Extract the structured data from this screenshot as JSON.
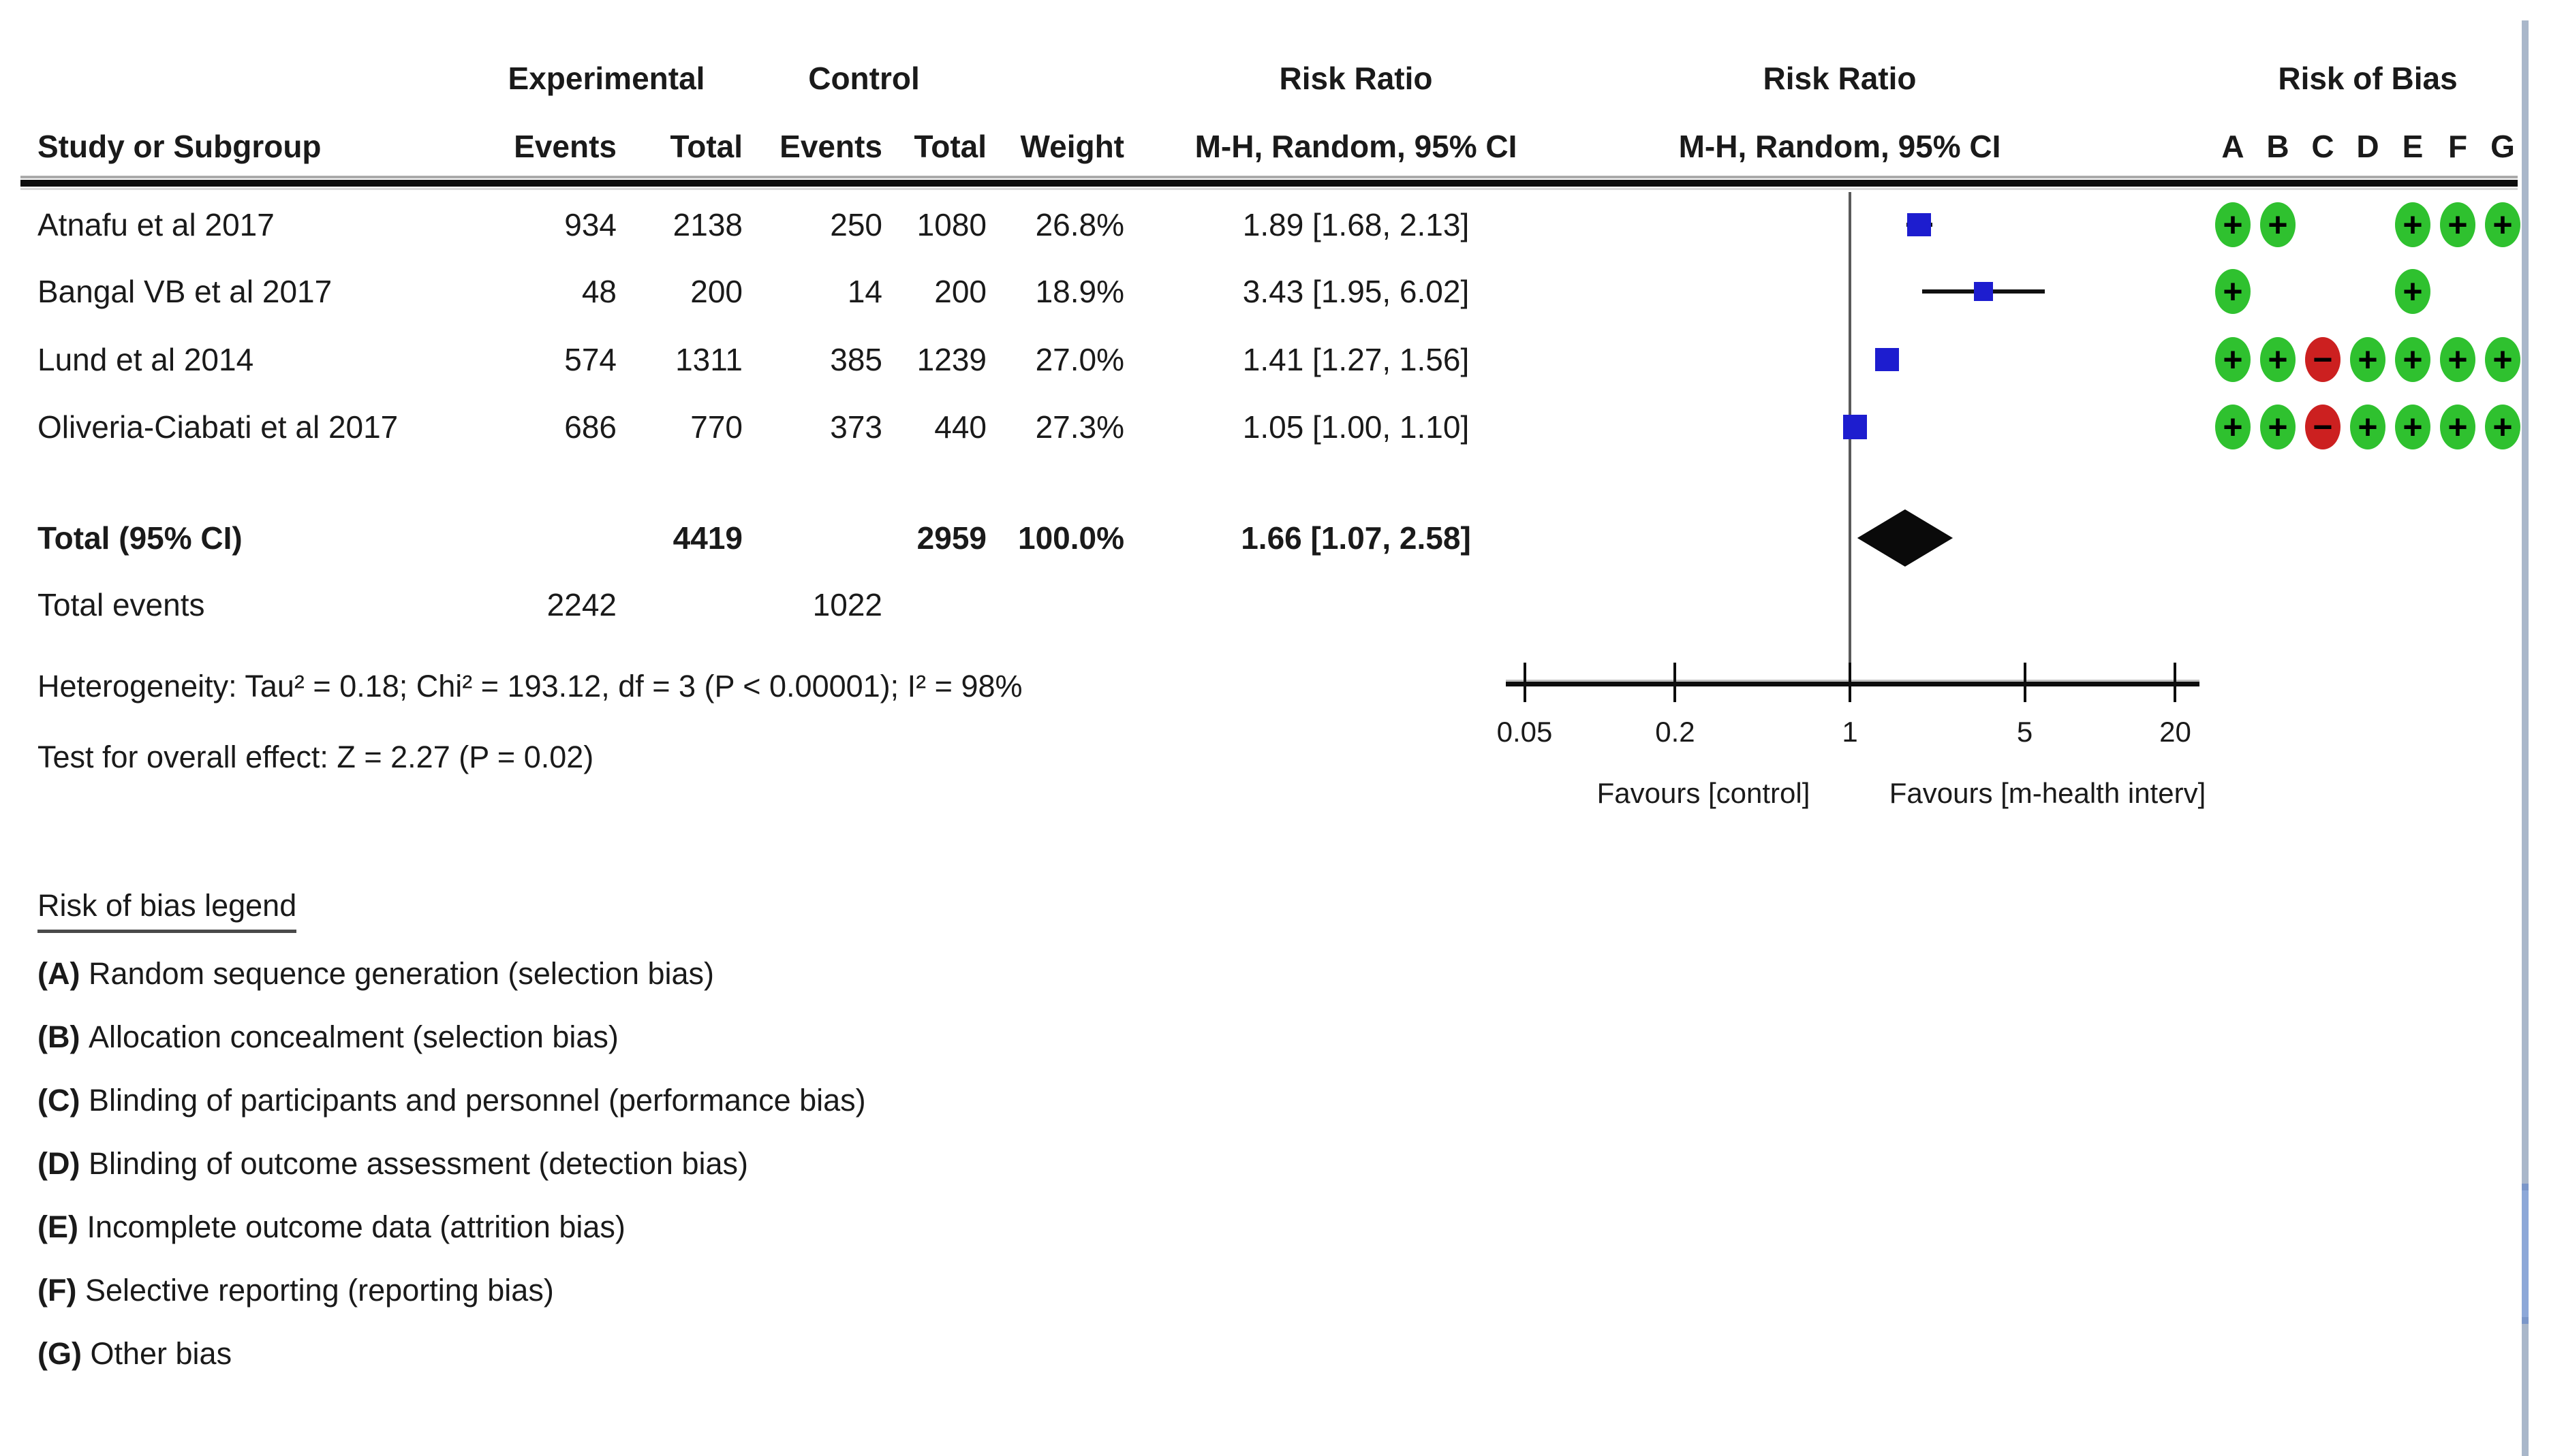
{
  "table": {
    "group_headers": {
      "experimental": "Experimental",
      "control": "Control"
    },
    "headers": {
      "study": "Study or Subgroup",
      "events": "Events",
      "total": "Total",
      "weight": "Weight",
      "risk_ratio": "Risk Ratio",
      "mh_random": "M-H, Random, 95% CI"
    },
    "total_row_label": "Total (95% CI)",
    "total_events_label": "Total events",
    "heterogeneity": "Heterogeneity: Tau² = 0.18; Chi² = 193.12, df = 3 (P < 0.00001); I² = 98%",
    "overall_effect": "Test for overall effect: Z = 2.27 (P = 0.02)"
  },
  "chart_data": {
    "type": "forest",
    "scale": "log",
    "effect_measure": "Risk Ratio",
    "method": "M-H, Random, 95% CI",
    "axis_ticks": [
      0.05,
      0.2,
      1,
      5,
      20
    ],
    "axis_range": [
      0.05,
      20
    ],
    "null_line": 1,
    "favours_left": "Favours [control]",
    "favours_right": "Favours [m-health interv]",
    "studies": [
      {
        "name": "Atnafu et al 2017",
        "events_exp": 934,
        "total_exp": 2138,
        "events_ctl": 250,
        "total_ctl": 1080,
        "weight_pct": 26.8,
        "rr": 1.89,
        "ci_low": 1.68,
        "ci_high": 2.13,
        "rob": [
          "+",
          "+",
          "",
          "",
          "+",
          "+",
          "+"
        ]
      },
      {
        "name": "Bangal VB et al 2017",
        "events_exp": 48,
        "total_exp": 200,
        "events_ctl": 14,
        "total_ctl": 200,
        "weight_pct": 18.9,
        "rr": 3.43,
        "ci_low": 1.95,
        "ci_high": 6.02,
        "rob": [
          "+",
          "",
          "",
          "",
          "+",
          "",
          ""
        ]
      },
      {
        "name": "Lund et al 2014",
        "events_exp": 574,
        "total_exp": 1311,
        "events_ctl": 385,
        "total_ctl": 1239,
        "weight_pct": 27.0,
        "rr": 1.41,
        "ci_low": 1.27,
        "ci_high": 1.56,
        "rob": [
          "+",
          "+",
          "-",
          "+",
          "+",
          "+",
          "+"
        ]
      },
      {
        "name": "Oliveria-Ciabati et al 2017",
        "events_exp": 686,
        "total_exp": 770,
        "events_ctl": 373,
        "total_ctl": 440,
        "weight_pct": 27.3,
        "rr": 1.05,
        "ci_low": 1.0,
        "ci_high": 1.1,
        "rob": [
          "+",
          "+",
          "-",
          "+",
          "+",
          "+",
          "+"
        ]
      }
    ],
    "total": {
      "total_exp": 4419,
      "total_ctl": 2959,
      "weight_pct": 100.0,
      "rr": 1.66,
      "ci_low": 1.07,
      "ci_high": 2.58
    },
    "total_events": {
      "exp": 2242,
      "ctl": 1022
    }
  },
  "risk_of_bias": {
    "header": "Risk of Bias",
    "domains": [
      "A",
      "B",
      "C",
      "D",
      "E",
      "F",
      "G"
    ]
  },
  "legend": {
    "title": "Risk of bias legend",
    "items": [
      {
        "key": "A",
        "text": "Random sequence generation (selection bias)"
      },
      {
        "key": "B",
        "text": "Allocation concealment (selection bias)"
      },
      {
        "key": "C",
        "text": "Blinding of participants and personnel (performance bias)"
      },
      {
        "key": "D",
        "text": "Blinding of outcome assessment (detection bias)"
      },
      {
        "key": "E",
        "text": "Incomplete outcome data (attrition bias)"
      },
      {
        "key": "F",
        "text": "Selective reporting (reporting bias)"
      },
      {
        "key": "G",
        "text": "Other bias"
      }
    ]
  },
  "colors": {
    "square_blue": "#1d1dcf",
    "diamond_black": "#0a0a0a",
    "rob_low": "#2fc12f",
    "rob_high": "#cc2020",
    "scroll_track": "#a9b7ca",
    "scroll_thumb": "#8da8d8"
  },
  "rob_symbols": {
    "low": "+",
    "high": "−"
  }
}
